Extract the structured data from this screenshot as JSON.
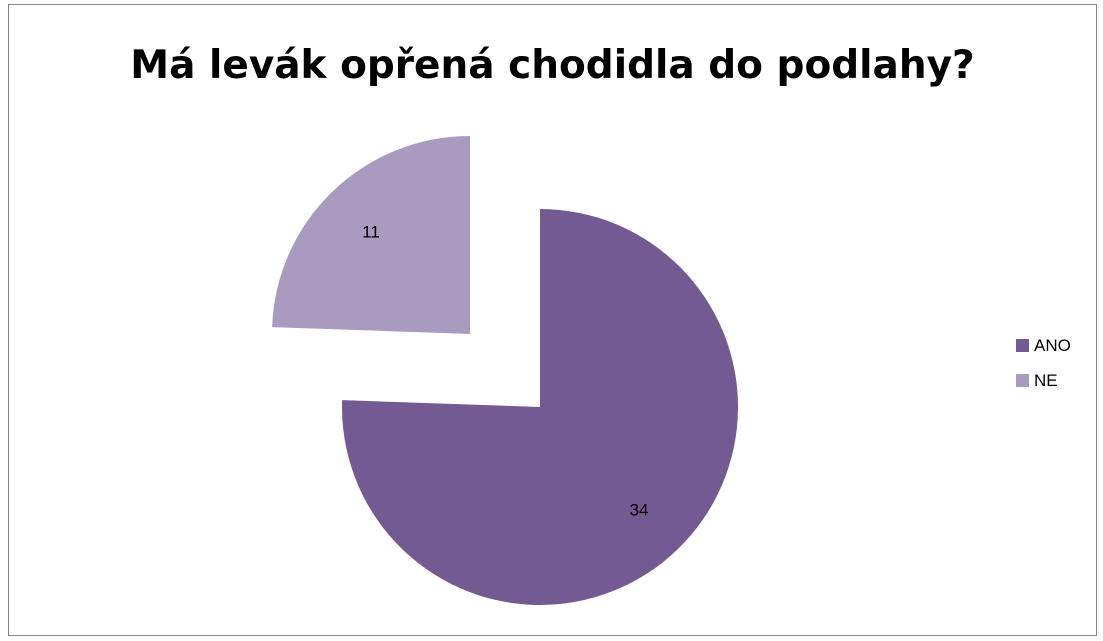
{
  "chart_data": {
    "type": "pie",
    "title": "Má levák opřená chodidla do podlahy?",
    "slices": [
      {
        "label": "ANO",
        "value": 34,
        "color": "#735a92"
      },
      {
        "label": "NE",
        "value": 11,
        "color": "#a99abf"
      }
    ],
    "exploded": true,
    "data_labels": true,
    "legend_position": "right"
  }
}
